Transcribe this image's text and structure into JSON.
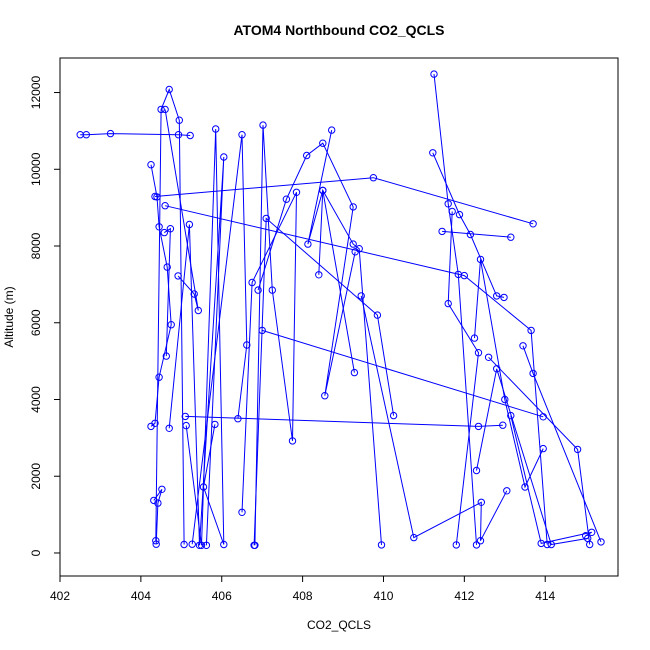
{
  "chart_data": {
    "type": "line",
    "title": "ATOM4 Northbound CO2_QCLS",
    "xlabel": "CO2_QCLS",
    "ylabel": "Altitude (m)",
    "xlim": [
      402,
      415.8
    ],
    "ylim": [
      -600,
      12900
    ],
    "xticks": [
      "402",
      "404",
      "406",
      "408",
      "410",
      "412",
      "414"
    ],
    "yticks": [
      "0",
      "2000",
      "4000",
      "6000",
      "8000",
      "10000",
      "12000"
    ],
    "grid": false,
    "line_color": "#0000ff",
    "markers": "open-circle",
    "series": [
      {
        "x": [
          402.5,
          402.65,
          403.25,
          404.93,
          405.22
        ],
        "y": [
          10900,
          10900,
          10930,
          10900,
          10880
        ]
      },
      {
        "x": [
          404.25,
          404.4,
          404.45,
          404.65,
          404.75,
          404.45,
          404.35,
          404.25
        ],
        "y": [
          10120,
          9280,
          8500,
          7450,
          5950,
          4580,
          3380,
          3300
        ]
      },
      {
        "x": [
          404.58,
          404.73,
          404.63
        ],
        "y": [
          8350,
          8450,
          5130
        ]
      },
      {
        "x": [
          404.32,
          404.52,
          404.42,
          404.38
        ],
        "y": [
          1370,
          1660,
          1300,
          230
        ]
      },
      {
        "x": [
          404.37,
          404.5,
          404.7,
          404.95,
          405.07
        ],
        "y": [
          320,
          11560,
          12080,
          11280,
          220
        ]
      },
      {
        "x": [
          404.7,
          405.2,
          405.45,
          406.05,
          405.62
        ],
        "y": [
          3250,
          8560,
          200,
          10320,
          200
        ]
      },
      {
        "x": [
          405.12,
          405.5,
          405.85,
          406.05,
          405.55,
          405.83
        ],
        "y": [
          3320,
          200,
          11050,
          220,
          1720,
          3350
        ]
      },
      {
        "x": [
          404.92,
          405.32,
          405.42,
          404.6
        ],
        "y": [
          7220,
          6750,
          6320,
          11560
        ]
      },
      {
        "x": [
          405.27,
          406.5,
          406.62,
          406.4
        ],
        "y": [
          230,
          10900,
          5420,
          3500
        ]
      },
      {
        "x": [
          406.82,
          407.02,
          407.25,
          407.75,
          407.85,
          406.75,
          406.5
        ],
        "y": [
          200,
          11150,
          6850,
          2920,
          9400,
          7050,
          1060
        ]
      },
      {
        "x": [
          406.9,
          407.6,
          408.1,
          408.5,
          409.25,
          408.55,
          409.3
        ],
        "y": [
          6850,
          9220,
          10360,
          10680,
          9020,
          4100,
          7850
        ]
      },
      {
        "x": [
          408.72,
          408.13,
          408.5,
          409.28
        ],
        "y": [
          11020,
          8050,
          9450,
          4700
        ]
      },
      {
        "x": [
          408.4,
          408.5,
          409.25,
          409.4,
          409.95
        ],
        "y": [
          7250,
          9450,
          8050,
          7930,
          210
        ]
      },
      {
        "x": [
          406.8,
          407.1,
          409.85,
          410.25
        ],
        "y": [
          200,
          8720,
          6200,
          3580
        ]
      },
      {
        "x": [
          404.35,
          409.75,
          413.7
        ],
        "y": [
          9290,
          9780,
          8580
        ]
      },
      {
        "x": [
          411.25,
          411.6,
          411.85,
          412.3
        ],
        "y": [
          12480,
          9100,
          7260,
          210
        ]
      },
      {
        "x": [
          411.22,
          411.88,
          412.15,
          412.8,
          412.98
        ],
        "y": [
          10430,
          8820,
          8300,
          6700,
          6660
        ]
      },
      {
        "x": [
          411.45,
          413.15
        ],
        "y": [
          8380,
          8230
        ]
      },
      {
        "x": [
          411.7,
          411.6,
          412.35,
          411.8
        ],
        "y": [
          8900,
          6500,
          5220,
          210
        ]
      },
      {
        "x": [
          412.25,
          412.4,
          413.0,
          413.5,
          413.95
        ],
        "y": [
          5600,
          7650,
          4000,
          1720,
          2720
        ]
      },
      {
        "x": [
          404.6,
          412.0,
          413.65,
          414.05
        ],
        "y": [
          9050,
          7230,
          5800,
          220
        ]
      },
      {
        "x": [
          405.1,
          412.35,
          412.95
        ],
        "y": [
          3560,
          3300,
          3330
        ]
      },
      {
        "x": [
          409.45,
          410.75,
          412.42,
          412.4,
          413.05
        ],
        "y": [
          6700,
          400,
          1320,
          320,
          1620
        ]
      },
      {
        "x": [
          412.3,
          412.8,
          414.15,
          415.05
        ],
        "y": [
          2150,
          4800,
          220,
          380
        ]
      },
      {
        "x": [
          413.15,
          413.9,
          415.15,
          415.0
        ],
        "y": [
          3580,
          250,
          540,
          450
        ]
      },
      {
        "x": [
          413.45,
          413.7,
          415.38
        ],
        "y": [
          5400,
          4680,
          290
        ]
      },
      {
        "x": [
          407.0,
          413.95
        ],
        "y": [
          5800,
          3550
        ]
      },
      {
        "x": [
          412.6,
          414.8,
          415.1
        ],
        "y": [
          5100,
          2700,
          220
        ]
      }
    ]
  }
}
